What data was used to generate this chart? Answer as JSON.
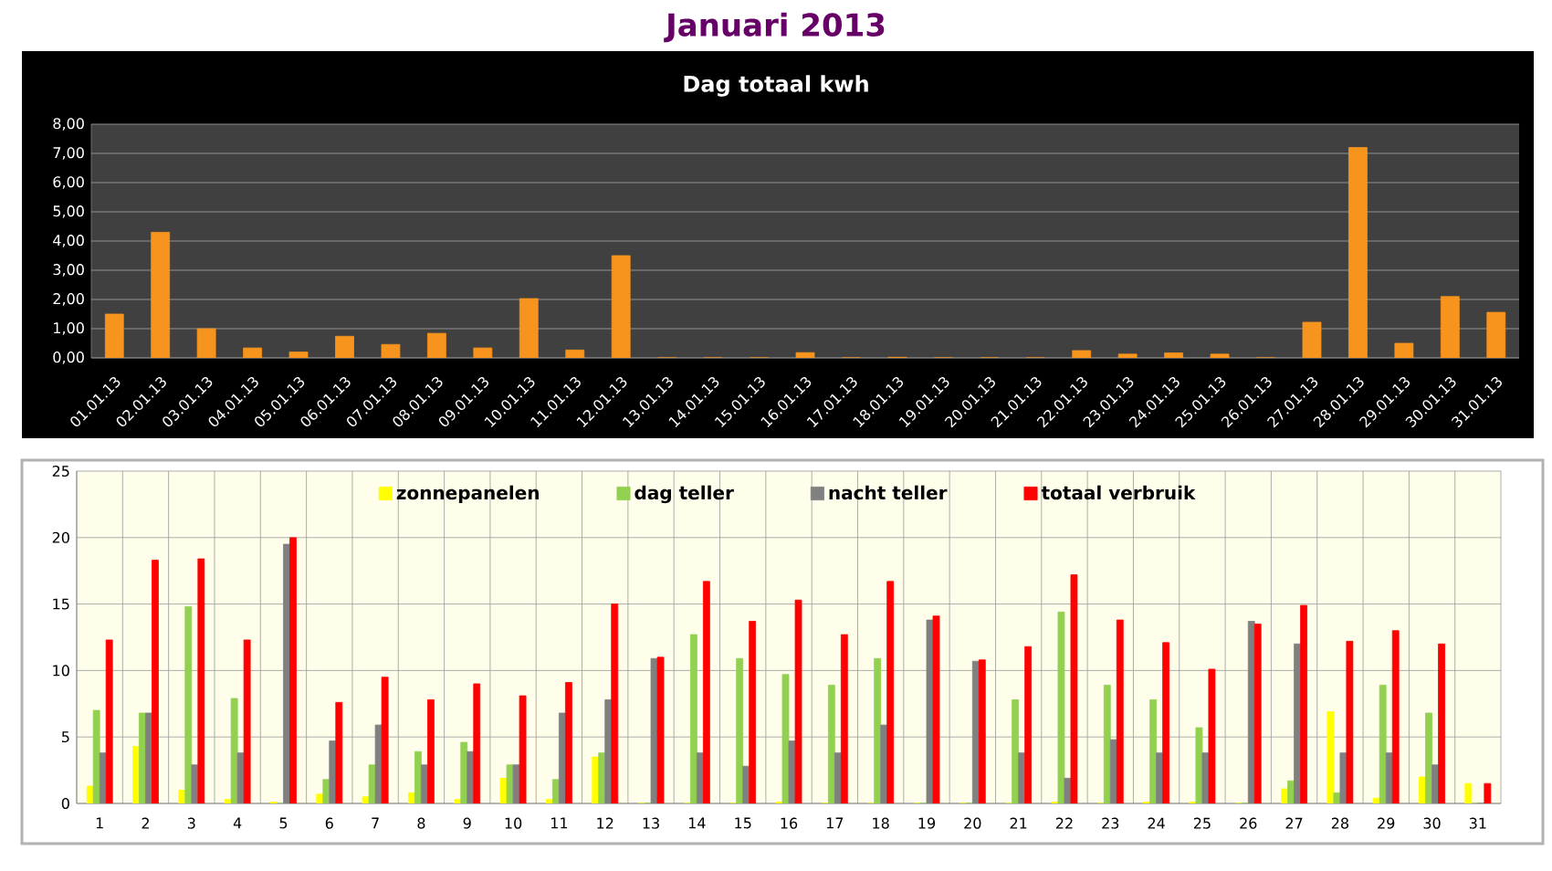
{
  "chart_data": [
    {
      "type": "bar",
      "title": "Januari 2013",
      "subtitle": "Dag totaal kwh",
      "categories": [
        "01.01.13",
        "02.01.13",
        "03.01.13",
        "04.01.13",
        "05.01.13",
        "06.01.13",
        "07.01.13",
        "08.01.13",
        "09.01.13",
        "10.01.13",
        "11.01.13",
        "12.01.13",
        "13.01.13",
        "14.01.13",
        "15.01.13",
        "16.01.13",
        "17.01.13",
        "18.01.13",
        "19.01.13",
        "20.01.13",
        "21.01.13",
        "22.01.13",
        "23.01.13",
        "24.01.13",
        "25.01.13",
        "26.01.13",
        "27.01.13",
        "28.01.13",
        "29.01.13",
        "30.01.13",
        "31.01.13"
      ],
      "values": [
        1.5,
        4.3,
        1.0,
        0.34,
        0.2,
        0.74,
        0.46,
        0.84,
        0.34,
        2.03,
        0.27,
        3.5,
        0,
        0,
        0,
        0.18,
        0,
        0.02,
        0,
        0,
        0,
        0.25,
        0.13,
        0.17,
        0.13,
        0,
        1.22,
        7.2,
        0.5,
        2.1,
        1.56
      ],
      "color": "#f7941d",
      "ylim": [
        0,
        8
      ],
      "yticks": [
        {
          "value": 0,
          "label": "0,00"
        },
        {
          "value": 1,
          "label": "1,00"
        },
        {
          "value": 2,
          "label": "2,00"
        },
        {
          "value": 3,
          "label": "3,00"
        },
        {
          "value": 4,
          "label": "4,00"
        },
        {
          "value": 5,
          "label": "5,00"
        },
        {
          "value": 6,
          "label": "6,00"
        },
        {
          "value": 7,
          "label": "7,00"
        },
        {
          "value": 8,
          "label": "8,00"
        }
      ],
      "grid": "y"
    },
    {
      "type": "bar",
      "categories": [
        "1",
        "2",
        "3",
        "4",
        "5",
        "6",
        "7",
        "8",
        "9",
        "10",
        "11",
        "12",
        "13",
        "14",
        "15",
        "16",
        "17",
        "18",
        "19",
        "20",
        "21",
        "22",
        "23",
        "24",
        "25",
        "26",
        "27",
        "28",
        "29",
        "30",
        "31"
      ],
      "series": [
        {
          "name": "zonnepanelen",
          "color": "#ffff00",
          "values": [
            1.3,
            4.3,
            1.0,
            0.3,
            0.1,
            0.7,
            0.5,
            0.8,
            0.3,
            1.9,
            0.3,
            3.5,
            0,
            0,
            0,
            0.1,
            0,
            0,
            0,
            0,
            0,
            0.1,
            0,
            0.1,
            0.1,
            0,
            1.1,
            6.9,
            0.4,
            2.0,
            1.5
          ]
        },
        {
          "name": "dag teller",
          "color": "#92d050",
          "values": [
            7.0,
            6.8,
            14.8,
            7.9,
            0,
            1.8,
            2.9,
            3.9,
            4.6,
            2.9,
            1.8,
            3.8,
            0,
            12.7,
            10.9,
            9.7,
            8.9,
            10.9,
            0,
            0,
            7.8,
            14.4,
            8.9,
            7.8,
            5.7,
            0,
            1.7,
            0.8,
            8.9,
            6.8,
            0
          ]
        },
        {
          "name": "nacht teller",
          "color": "#808080",
          "values": [
            3.8,
            6.8,
            2.9,
            3.8,
            19.5,
            4.7,
            5.9,
            2.9,
            3.9,
            2.9,
            6.8,
            7.8,
            10.9,
            3.8,
            2.8,
            4.7,
            3.8,
            5.9,
            13.8,
            10.7,
            3.8,
            1.9,
            4.8,
            3.8,
            3.8,
            13.7,
            12.0,
            3.8,
            3.8,
            2.9,
            0
          ]
        },
        {
          "name": "totaal verbruik",
          "color": "#ff0000",
          "values": [
            12.3,
            18.3,
            18.4,
            12.3,
            20.0,
            7.6,
            9.5,
            7.8,
            9.0,
            8.1,
            9.1,
            15.0,
            11.0,
            16.7,
            13.7,
            15.3,
            12.7,
            16.7,
            14.1,
            10.8,
            11.8,
            17.2,
            13.8,
            12.1,
            10.1,
            13.5,
            14.9,
            12.2,
            13.0,
            12.0,
            1.5
          ]
        }
      ],
      "ylim": [
        0,
        25
      ],
      "yticks": [
        0,
        5,
        10,
        15,
        20,
        25
      ],
      "grid": true,
      "legend": "top"
    }
  ]
}
